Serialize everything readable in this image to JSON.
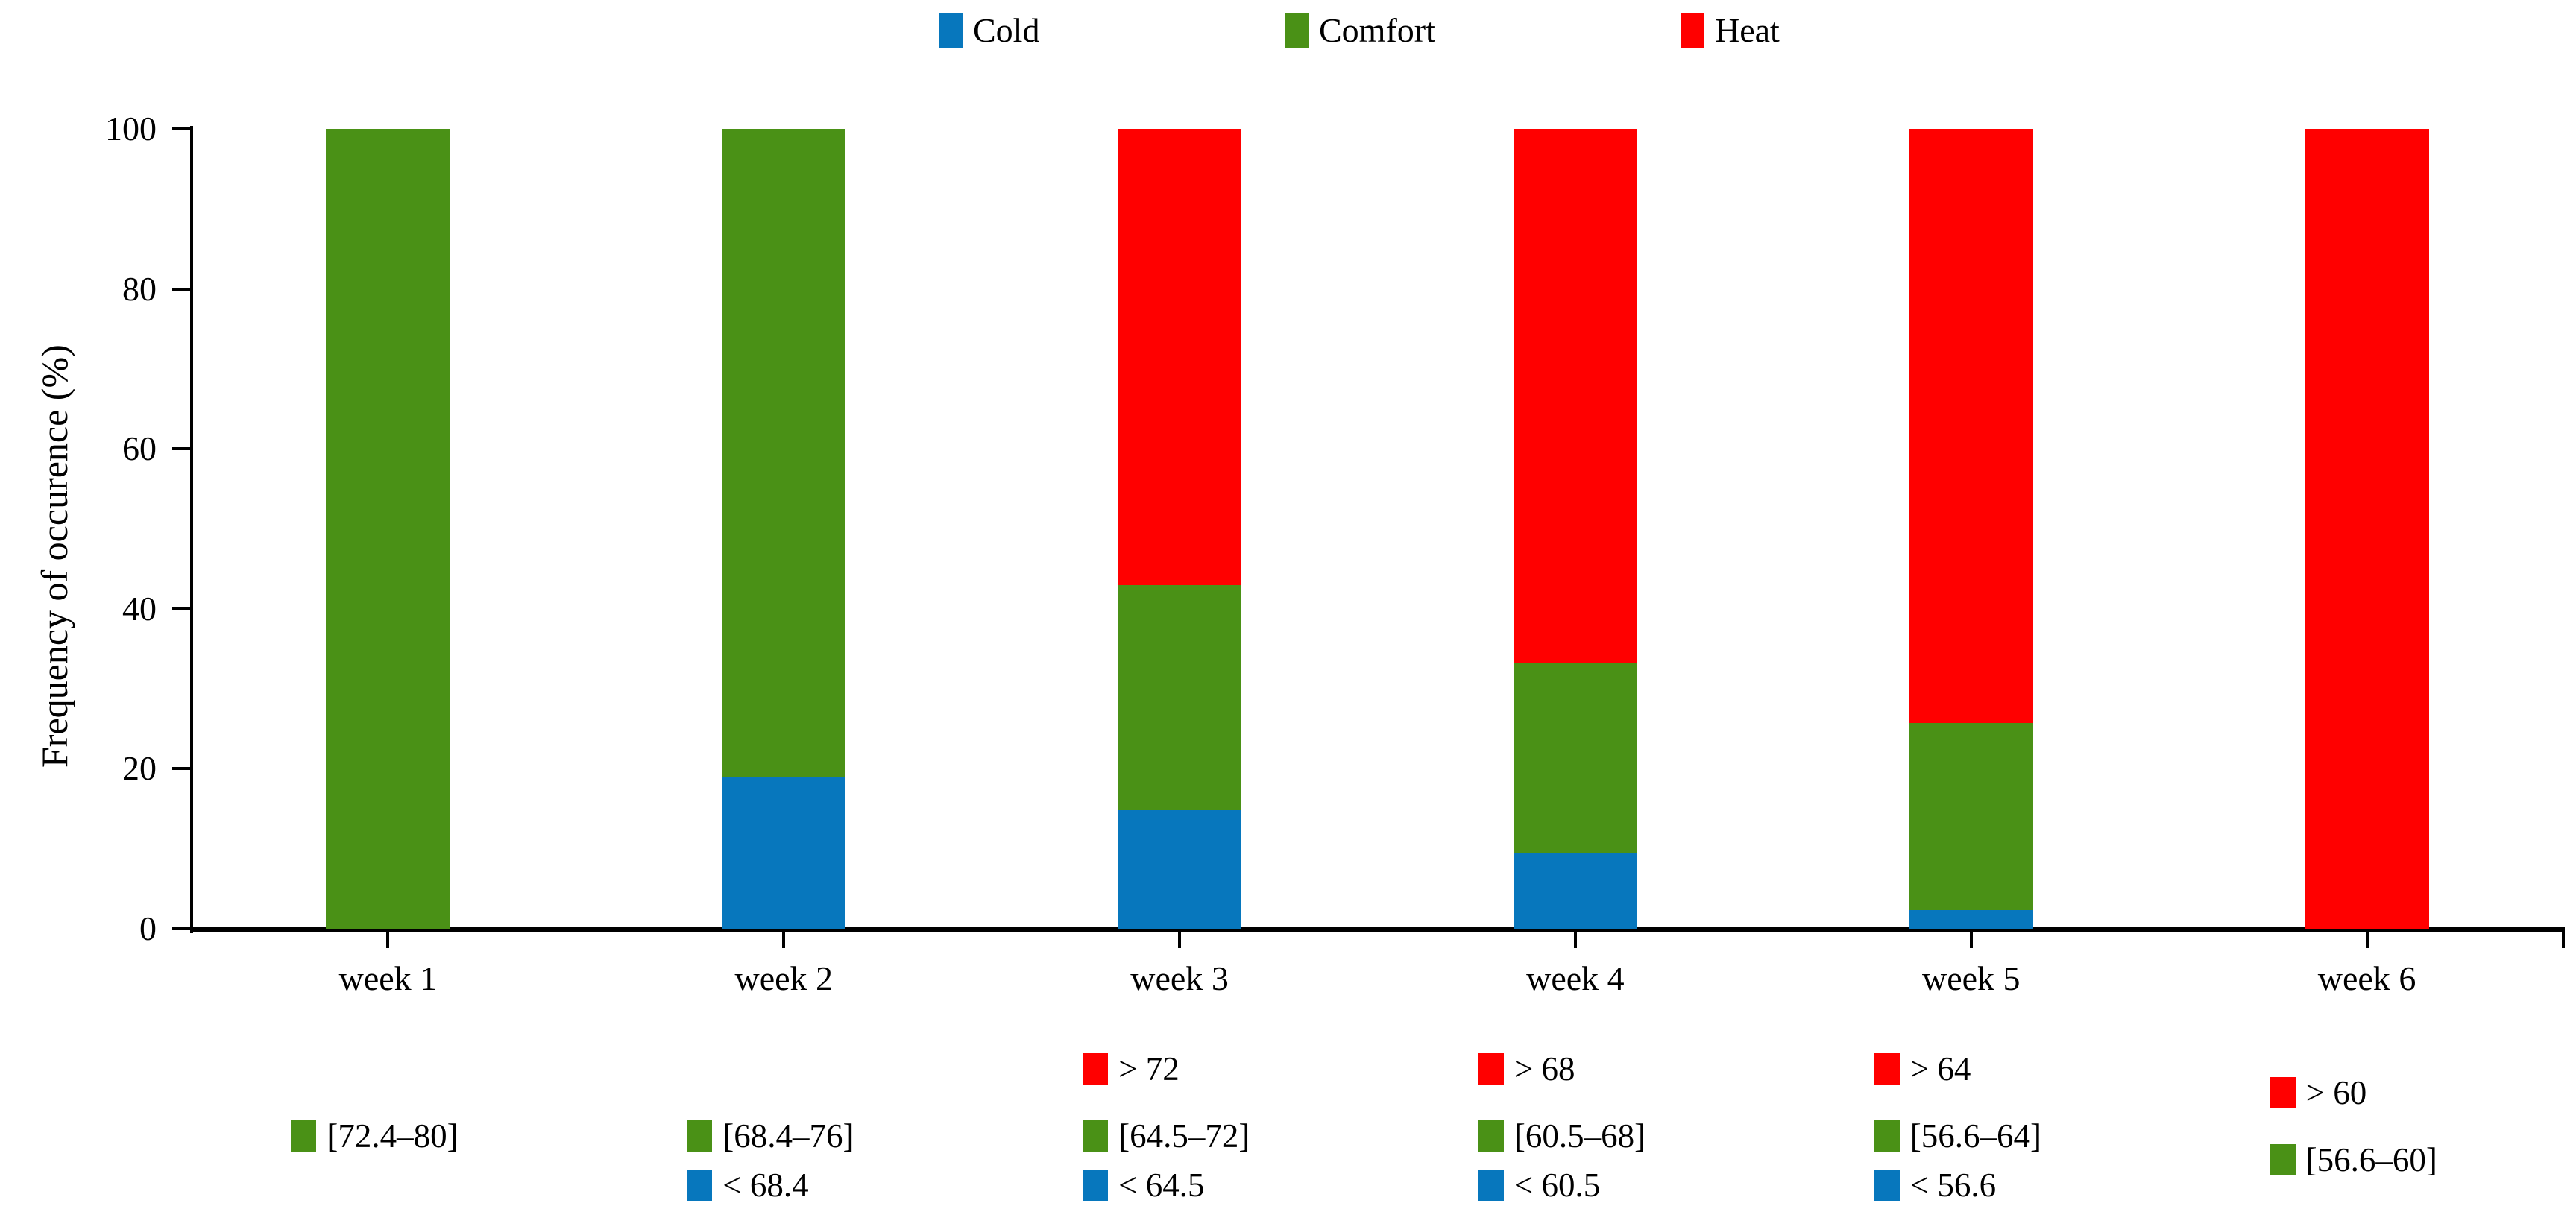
{
  "chart_data": {
    "type": "bar",
    "stacked": true,
    "orientation": "vertical",
    "title": "",
    "categories": [
      "week 1",
      "week 2",
      "week 3",
      "week 4",
      "week 5",
      "week 6"
    ],
    "series": [
      {
        "name": "Cold",
        "color": "#0777bd",
        "values": [
          0,
          19,
          14.8,
          9.4,
          2.3,
          0
        ]
      },
      {
        "name": "Comfort",
        "color": "#4a9116",
        "values": [
          100,
          81,
          28.2,
          23.8,
          23.4,
          0
        ]
      },
      {
        "name": "Heat",
        "color": "#ff0000",
        "values": [
          0,
          0,
          57.0,
          66.8,
          74.3,
          100
        ]
      }
    ],
    "xlabel": "",
    "ylabel": "Frequency of occurence (%)",
    "ylim": [
      0,
      100
    ],
    "yticks": [
      0,
      20,
      40,
      60,
      80,
      100
    ],
    "grid": false,
    "legend_position": "top",
    "legend_entries": [
      "Cold",
      "Comfort",
      "Heat"
    ],
    "threshold_annotations": [
      {
        "week": "week 1",
        "comfort": "[72.4–80]"
      },
      {
        "week": "week 2",
        "comfort": "[68.4–76]",
        "cold": "< 68.4"
      },
      {
        "week": "week 3",
        "heat": "> 72",
        "comfort": "[64.5–72]",
        "cold": "< 64.5"
      },
      {
        "week": "week 4",
        "heat": "> 68",
        "comfort": "[60.5–68]",
        "cold": "< 60.5"
      },
      {
        "week": "week 5",
        "heat": "> 64",
        "comfort": "[56.6–64]",
        "cold": "< 56.6"
      },
      {
        "week": "week 6",
        "heat": "> 60",
        "comfort": "[56.6–60]"
      }
    ]
  }
}
